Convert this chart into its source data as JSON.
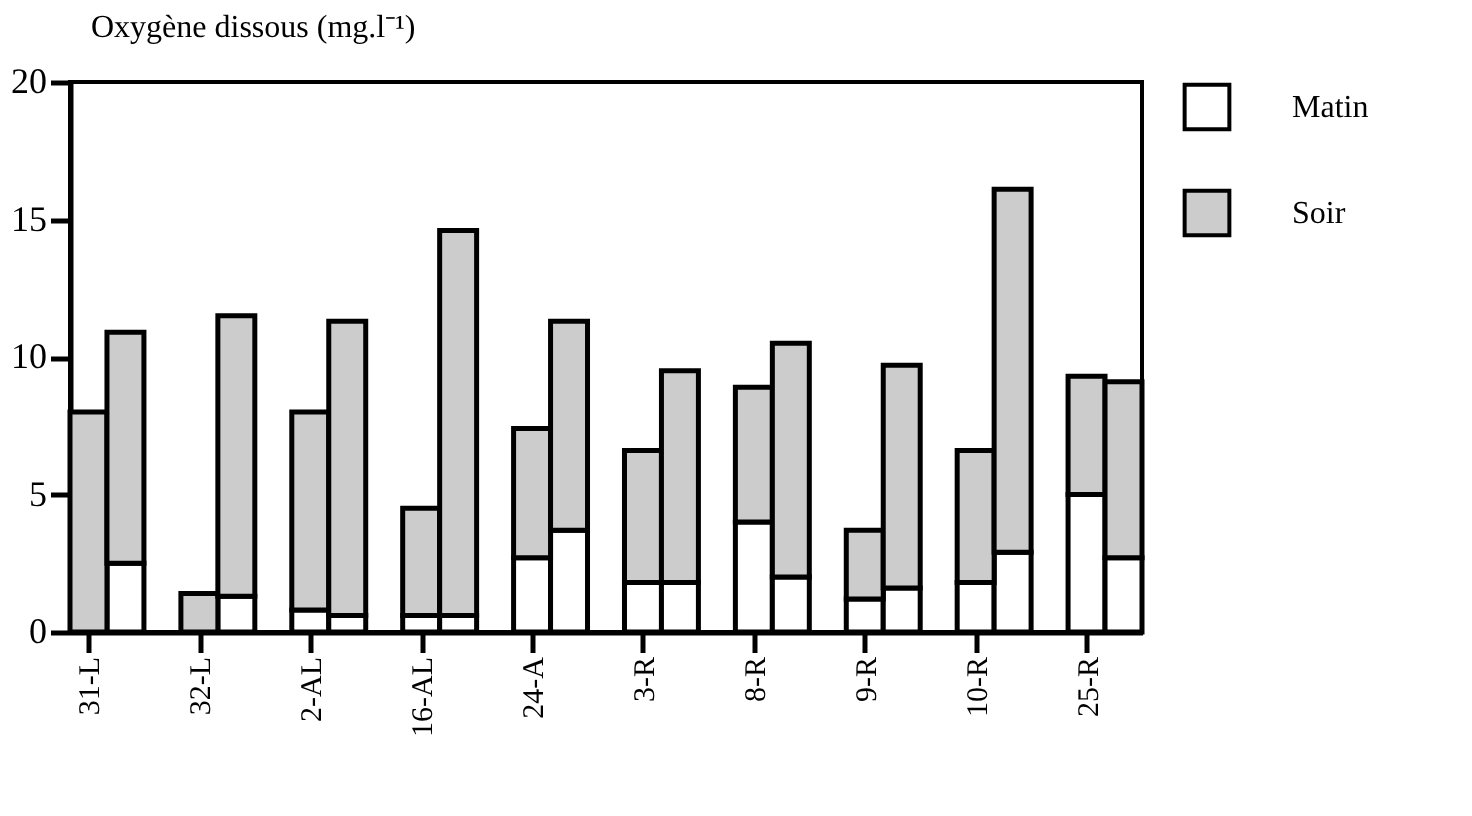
{
  "chart_data": {
    "type": "bar",
    "stacked": true,
    "ylabel": "Oxygène dissous (mg.l⁻¹)",
    "categories": [
      "31-L",
      null,
      "32-L",
      null,
      "2-AL",
      null,
      "16-AL",
      null,
      "24-A",
      null,
      "3-R",
      null,
      "8-R",
      null,
      "9-R",
      null,
      "10-R",
      null,
      "25-R",
      null
    ],
    "series": [
      {
        "name": "Matin",
        "color": "#ffffff",
        "values": [
          0,
          2.5,
          0,
          1.3,
          0.8,
          0.6,
          0.6,
          0.6,
          2.7,
          3.7,
          1.8,
          1.8,
          4.0,
          2.0,
          1.2,
          1.6,
          1.8,
          2.9,
          5.0,
          2.7
        ]
      },
      {
        "name": "Soir",
        "color": "#cccccc",
        "values": [
          8.0,
          8.4,
          1.4,
          10.2,
          7.2,
          10.7,
          3.9,
          14.0,
          4.7,
          7.6,
          4.8,
          7.7,
          4.9,
          8.5,
          2.5,
          8.1,
          4.8,
          13.2,
          4.3,
          6.4
        ]
      }
    ],
    "ylim": [
      0,
      20
    ],
    "yticks": [
      0,
      5,
      10,
      15,
      20
    ],
    "grid": false,
    "legend": "right"
  }
}
